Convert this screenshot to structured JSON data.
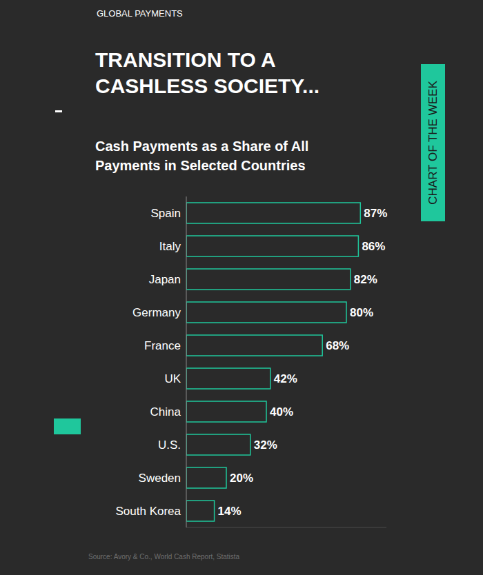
{
  "chart_data": {
    "type": "bar",
    "title": "TRANSITION TO A CASHLESS SOCIETY...",
    "subtitle": "Cash Payments as a Share of All Payments in Selected Countries",
    "annotations": [
      "GLOBAL PAYMENTS",
      "CHART OF THE WEEK",
      "Source: Avory & Co., World Cash Report, Statista"
    ],
    "categories": [
      "Spain",
      "Italy",
      "Japan",
      "Germany",
      "France",
      "UK",
      "China",
      "U.S.",
      "Sweden",
      "South Korea"
    ],
    "values": [
      87,
      86,
      82,
      80,
      68,
      42,
      40,
      32,
      20,
      14
    ],
    "value_labels": [
      "87%",
      "86%",
      "82%",
      "80%",
      "68%",
      "42%",
      "40%",
      "32%",
      "20%",
      "14%"
    ],
    "color": "#1fc79c",
    "xlim": [
      0,
      100
    ],
    "xticks": [],
    "orientation": "horizontal",
    "data_labels": true,
    "tick_labels": "y",
    "grid": false
  }
}
